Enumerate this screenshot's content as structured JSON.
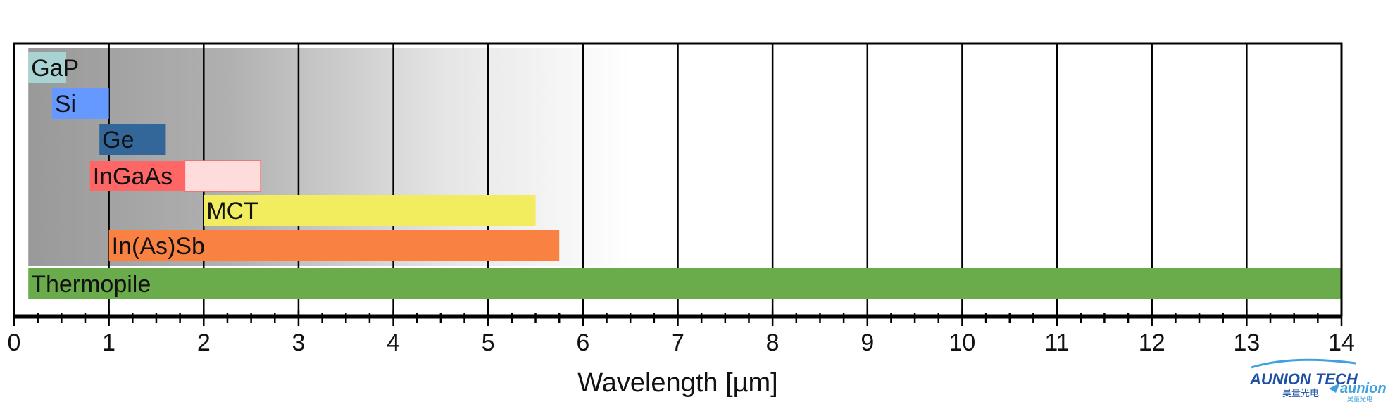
{
  "chart_data": {
    "type": "bar",
    "subtype": "horizontal-range",
    "title": "",
    "xlabel": "Wavelength [µm]",
    "ylabel": "",
    "xlim": [
      0,
      14
    ],
    "x_ticks": [
      "0",
      "1",
      "2",
      "3",
      "4",
      "5",
      "6",
      "7",
      "8",
      "9",
      "10",
      "11",
      "12",
      "13",
      "14"
    ],
    "minor_ticks_per_unit": 4,
    "grid": "vertical",
    "background": "grey gradient fading from dark at 0 µm to white at about 6.5 µm",
    "series": [
      {
        "name": "GaP",
        "start": 0.15,
        "end": 0.55,
        "color": "#a9d3d2"
      },
      {
        "name": "Si",
        "start": 0.4,
        "end": 1.0,
        "color": "#6699ff"
      },
      {
        "name": "Ge",
        "start": 0.9,
        "end": 1.6,
        "color": "#336699"
      },
      {
        "name": "InGaAs",
        "start": 0.8,
        "end": 1.8,
        "extended_end": 2.6,
        "color": "#ff6666",
        "extended_color": "#ffdcdc"
      },
      {
        "name": "MCT",
        "start": 2.0,
        "end": 5.5,
        "color": "#f2ed5e"
      },
      {
        "name": "In(As)Sb",
        "start": 1.0,
        "end": 5.75,
        "color": "#f98141"
      },
      {
        "name": "Thermopile",
        "start": 0.15,
        "end": 14.0,
        "color": "#6aac4b"
      }
    ]
  },
  "logo": {
    "brand": "AUNION TECH",
    "brand_cn": "昊量光电",
    "secondary": "aunion",
    "secondary_cn": "昊量光电",
    "colors": {
      "primary": "#1f4fa3",
      "swoosh": "#3fa0e0"
    }
  }
}
